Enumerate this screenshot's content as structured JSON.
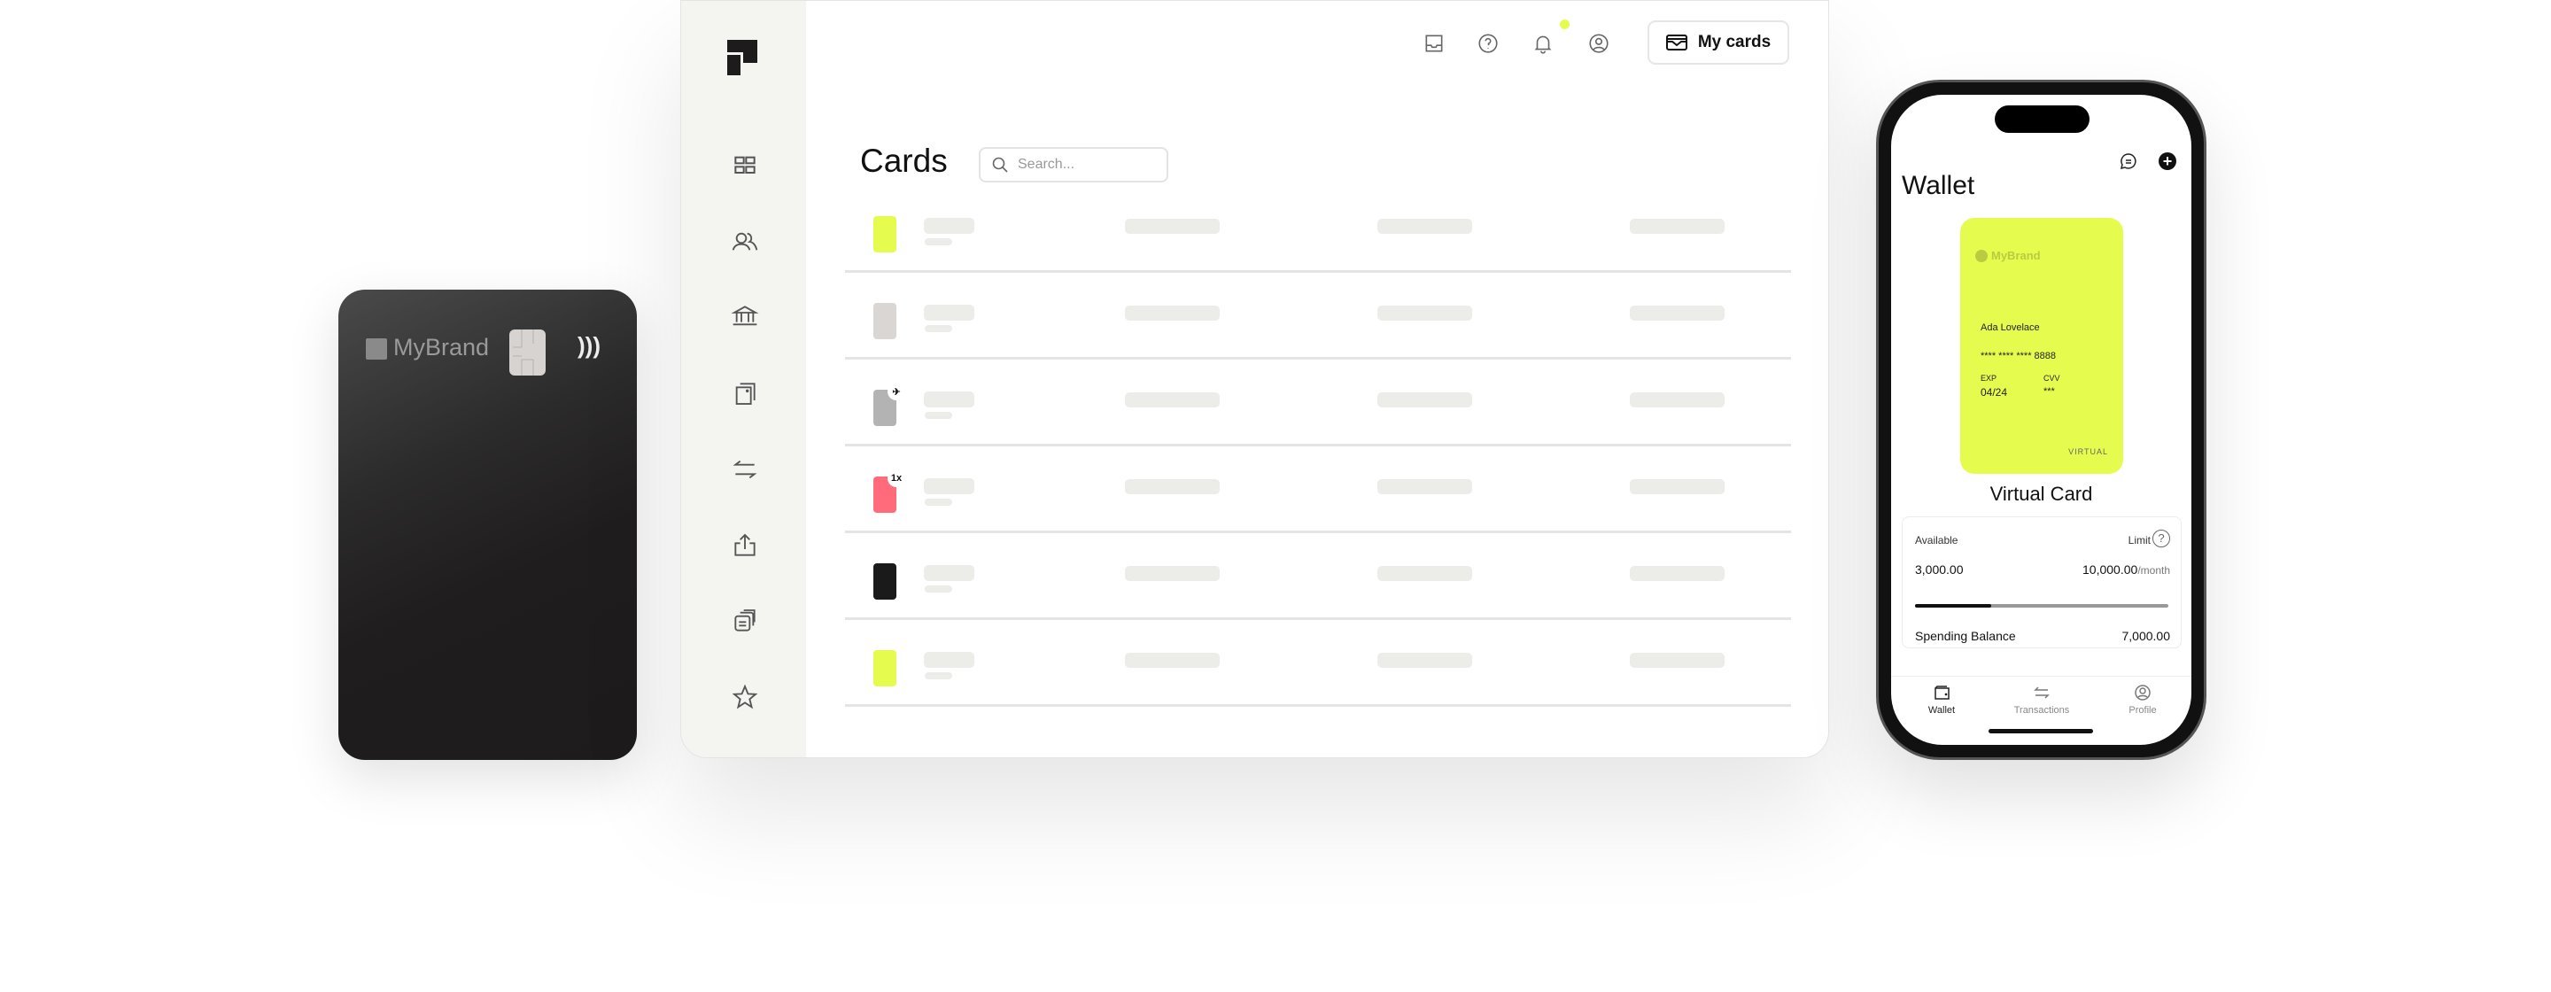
{
  "physical_card": {
    "brand": "MyBrand",
    "color": "#1f1d1d"
  },
  "dashboard": {
    "sidebar": {
      "items": [
        {
          "icon": "grid-icon"
        },
        {
          "icon": "users-icon"
        },
        {
          "icon": "bank-icon"
        },
        {
          "icon": "cards-icon"
        },
        {
          "icon": "transfer-icon"
        },
        {
          "icon": "export-icon"
        },
        {
          "icon": "documents-icon"
        },
        {
          "icon": "star-icon"
        }
      ]
    },
    "topbar": {
      "icons": [
        "inbox-icon",
        "help-icon",
        "bell-icon",
        "user-icon"
      ],
      "my_cards_label": "My cards"
    },
    "page_title": "Cards",
    "search": {
      "placeholder": "Search..."
    },
    "rows": [
      {
        "card_color": "#e5fc4f",
        "badge": ""
      },
      {
        "card_color": "#d9d6d3",
        "badge": ""
      },
      {
        "card_color": "#b3b3b3",
        "badge": "plane-icon"
      },
      {
        "card_color": "#ff6b7a",
        "badge": "1x"
      },
      {
        "card_color": "#1a1a1a",
        "badge": ""
      },
      {
        "card_color": "#e5fc4f",
        "badge": ""
      }
    ],
    "accent_color": "#e5fc4f"
  },
  "phone": {
    "title": "Wallet",
    "card": {
      "brand": "MyBrand",
      "holder": "Ada Lovelace",
      "number": "**** **** **** 8888",
      "exp_label": "EXP",
      "exp": "04/24",
      "cvv_label": "CVV",
      "cvv": "***",
      "type": "VIRTUAL"
    },
    "card_name": "Virtual Card",
    "info": {
      "available_label": "Available",
      "available": "3,000.00",
      "limit_label": "Limit",
      "limit": "10,000.00",
      "limit_period": "/month",
      "progress_percent": 30,
      "spending_label": "Spending Balance",
      "spending": "7,000.00"
    },
    "nav": [
      {
        "label": "Wallet",
        "icon": "wallet-icon"
      },
      {
        "label": "Transactions",
        "icon": "transfer-icon"
      },
      {
        "label": "Profile",
        "icon": "user-icon"
      }
    ]
  }
}
